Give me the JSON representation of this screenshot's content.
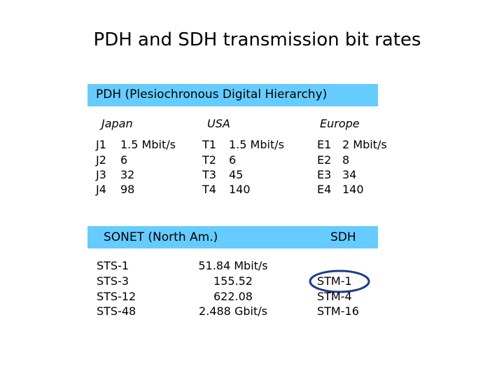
{
  "title": "PDH and SDH transmission bit rates",
  "pdh": {
    "header": "PDH (Plesiochronous Digital Hierarchy)",
    "columns": [
      {
        "heading": "Japan",
        "rows": [
          {
            "code": "J1",
            "rate": "1.5 Mbit/s"
          },
          {
            "code": "J2",
            "rate": "6"
          },
          {
            "code": "J3",
            "rate": "32"
          },
          {
            "code": "J4",
            "rate": "98"
          }
        ]
      },
      {
        "heading": "USA",
        "rows": [
          {
            "code": "T1",
            "rate": "1.5 Mbit/s"
          },
          {
            "code": "T2",
            "rate": "6"
          },
          {
            "code": "T3",
            "rate": "45"
          },
          {
            "code": "T4",
            "rate": "140"
          }
        ]
      },
      {
        "heading": "Europe",
        "rows": [
          {
            "code": "E1",
            "rate": "2 Mbit/s"
          },
          {
            "code": "E2",
            "rate": "8"
          },
          {
            "code": "E3",
            "rate": "34"
          },
          {
            "code": "E4",
            "rate": "140"
          }
        ]
      }
    ]
  },
  "sonet": {
    "header": "SONET (North Am.)",
    "rows": [
      {
        "name": "STS-1",
        "rate": "51.84 Mbit/s"
      },
      {
        "name": "STS-3",
        "rate": "155.52"
      },
      {
        "name": "STS-12",
        "rate": "622.08"
      },
      {
        "name": "STS-48",
        "rate": "2.488 Gbit/s"
      }
    ]
  },
  "sdh": {
    "header": "SDH",
    "rows": [
      "STM-1",
      "STM-4",
      "STM-16"
    ]
  }
}
